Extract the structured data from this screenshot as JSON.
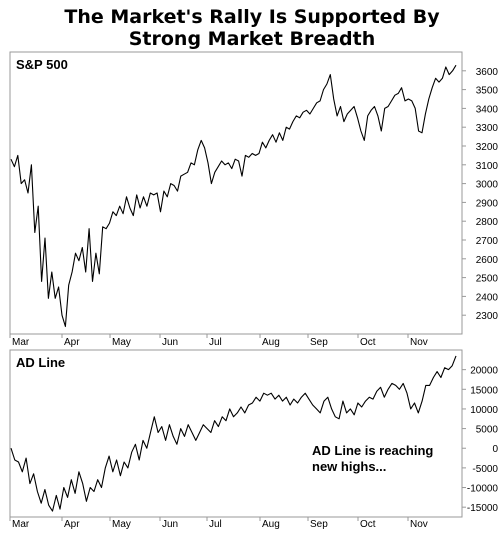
{
  "title_line1": "The Market's Rally Is Supported By",
  "title_line2": "Strong Market Breadth",
  "chart_data": [
    {
      "type": "line",
      "title": "S&P 500",
      "months": [
        "Mar",
        "Apr",
        "May",
        "Jun",
        "Jul",
        "Aug",
        "Sep",
        "Oct",
        "Nov"
      ],
      "ylim": [
        2200,
        3700
      ],
      "yticks": [
        2300,
        2400,
        2500,
        2600,
        2700,
        2800,
        2900,
        3000,
        3100,
        3200,
        3300,
        3400,
        3500,
        3600
      ],
      "series": [
        {
          "values": [
            3130,
            3090,
            3150,
            3000,
            3020,
            2950,
            3100,
            2740,
            2880,
            2480,
            2710,
            2390,
            2530,
            2390,
            2450,
            2300,
            2240,
            2460,
            2530,
            2630,
            2590,
            2660,
            2530,
            2760,
            2480,
            2630,
            2520,
            2770,
            2760,
            2790,
            2850,
            2830,
            2880,
            2840,
            2930,
            2870,
            2830,
            2940,
            2870,
            2930,
            2880,
            2950,
            2940,
            2950,
            2850,
            2960,
            2930,
            3000,
            2990,
            2960,
            3040,
            3050,
            3060,
            3110,
            3100,
            3180,
            3230,
            3190,
            3110,
            3000,
            3060,
            3090,
            3120,
            3100,
            3110,
            3080,
            3130,
            3120,
            3040,
            3150,
            3140,
            3160,
            3150,
            3160,
            3220,
            3190,
            3230,
            3260,
            3220,
            3270,
            3230,
            3300,
            3290,
            3330,
            3360,
            3350,
            3380,
            3390,
            3370,
            3400,
            3430,
            3440,
            3500,
            3530,
            3580,
            3450,
            3360,
            3410,
            3330,
            3370,
            3390,
            3410,
            3350,
            3280,
            3230,
            3360,
            3390,
            3410,
            3360,
            3280,
            3400,
            3410,
            3440,
            3470,
            3480,
            3510,
            3440,
            3450,
            3440,
            3400,
            3280,
            3270,
            3370,
            3450,
            3510,
            3560,
            3540,
            3560,
            3620,
            3580,
            3600,
            3630
          ]
        }
      ]
    },
    {
      "type": "line",
      "title": "AD Line",
      "months": [
        "Mar",
        "Apr",
        "May",
        "Jun",
        "Jul",
        "Aug",
        "Sep",
        "Oct",
        "Nov"
      ],
      "ylim": [
        -17500,
        25000
      ],
      "yticks": [
        -15000,
        -10000,
        -5000,
        0,
        5000,
        10000,
        15000,
        20000
      ],
      "annotation": [
        "AD Line is reaching",
        "new highs..."
      ],
      "series": [
        {
          "values": [
            0,
            -3000,
            -3500,
            -6000,
            -2500,
            -9000,
            -6500,
            -11000,
            -14000,
            -10500,
            -14500,
            -16000,
            -12000,
            -15500,
            -10000,
            -12500,
            -8000,
            -11500,
            -6000,
            -9000,
            -13500,
            -10000,
            -11000,
            -8000,
            -10000,
            -5000,
            -2000,
            -6000,
            -3000,
            -7000,
            -3500,
            -5000,
            -1000,
            1000,
            -3000,
            2000,
            0,
            4000,
            8000,
            4000,
            5500,
            2000,
            6000,
            3000,
            1000,
            5000,
            3000,
            6000,
            4000,
            2000,
            4000,
            6000,
            5000,
            4000,
            7000,
            5500,
            8000,
            7000,
            10000,
            8000,
            9000,
            10500,
            9000,
            11000,
            11500,
            13000,
            12000,
            14000,
            13500,
            14000,
            12500,
            13500,
            12000,
            13000,
            11000,
            12500,
            11500,
            13000,
            14000,
            12500,
            11000,
            10000,
            9000,
            12000,
            13000,
            10000,
            8000,
            7500,
            12000,
            9000,
            10000,
            8500,
            11500,
            10500,
            12000,
            13000,
            12500,
            14500,
            15500,
            13000,
            15000,
            16500,
            16000,
            15000,
            16500,
            14000,
            10000,
            11500,
            9000,
            12000,
            16000,
            16000,
            18000,
            19500,
            18000,
            20500,
            20000,
            21000,
            23500
          ]
        }
      ]
    }
  ]
}
